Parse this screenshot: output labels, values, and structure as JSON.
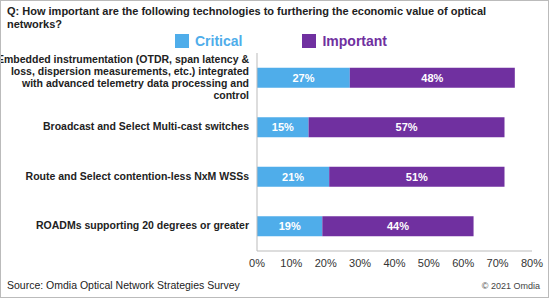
{
  "chart_data": {
    "type": "bar",
    "orientation": "horizontal",
    "stacked": true,
    "title": "Q: How important are the following technologies to furthering the economic value of optical networks?",
    "categories": [
      "Embedded instrumentation (OTDR, span latency & loss, dispersion measurements, etc.) integrated with advanced telemetry data processing and control",
      "Broadcast and Select Multi-cast switches",
      "Route and Select contention-less NxM WSSs",
      "ROADMs supporting 20 degrees or greater"
    ],
    "series": [
      {
        "name": "Critical",
        "color": "#4fadea",
        "values": [
          27,
          15,
          21,
          19
        ],
        "value_labels": [
          "27%",
          "15%",
          "21%",
          "19%"
        ]
      },
      {
        "name": "Important",
        "color": "#7030a0",
        "values": [
          48,
          57,
          51,
          44
        ],
        "value_labels": [
          "48%",
          "57%",
          "51%",
          "44%"
        ]
      }
    ],
    "xlim": [
      0,
      80
    ],
    "xticks": [
      {
        "value": 0,
        "label": "0%"
      },
      {
        "value": 10,
        "label": "10%"
      },
      {
        "value": 20,
        "label": "20%"
      },
      {
        "value": 30,
        "label": "30%"
      },
      {
        "value": 40,
        "label": "40%"
      },
      {
        "value": 50,
        "label": "50%"
      },
      {
        "value": 60,
        "label": "60%"
      },
      {
        "value": 70,
        "label": "70%"
      },
      {
        "value": 80,
        "label": "80%"
      }
    ],
    "grid": false,
    "legend": "top",
    "data_labels": true,
    "annotations": [
      "Source: Omdia Optical Network Strategies Survey",
      "© 2021 Omdia"
    ]
  }
}
